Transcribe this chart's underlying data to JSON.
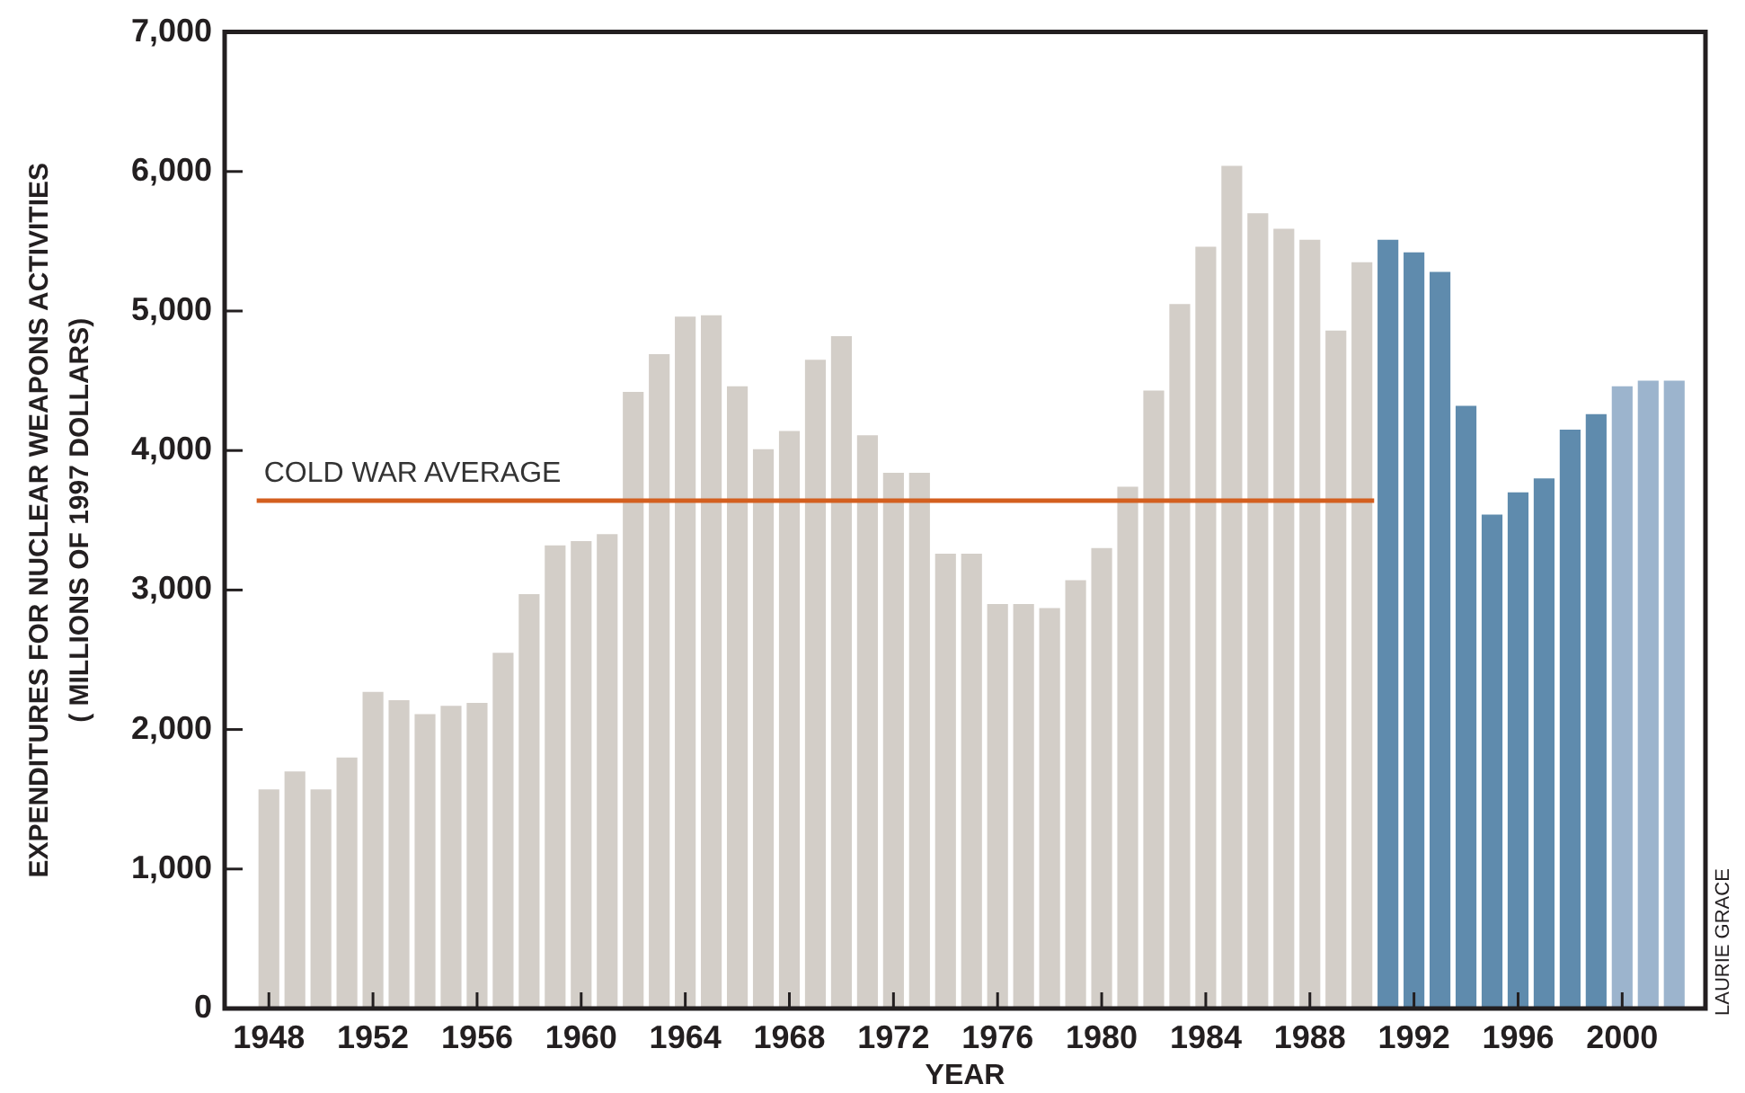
{
  "chart_data": {
    "type": "bar",
    "xlabel": "YEAR",
    "ylabel": "EXPENDITURES FOR NUCLEAR WEAPONS ACTIVITIES\n( MILLIONS OF 1997 DOLLARS)",
    "x": [
      1948,
      1949,
      1950,
      1951,
      1952,
      1953,
      1954,
      1955,
      1956,
      1957,
      1958,
      1959,
      1960,
      1961,
      1962,
      1963,
      1964,
      1965,
      1966,
      1967,
      1968,
      1969,
      1970,
      1971,
      1972,
      1973,
      1974,
      1975,
      1976,
      1977,
      1978,
      1979,
      1980,
      1981,
      1982,
      1983,
      1984,
      1985,
      1986,
      1987,
      1988,
      1989,
      1990,
      1991,
      1992,
      1993,
      1994,
      1995,
      1996,
      1997,
      1998,
      1999,
      2000,
      2001,
      2002
    ],
    "values": [
      1570,
      1700,
      1570,
      1800,
      2270,
      2210,
      2110,
      2170,
      2190,
      2550,
      2970,
      3320,
      3350,
      3400,
      4420,
      4690,
      4960,
      4970,
      4460,
      4010,
      4140,
      4650,
      4820,
      4110,
      3840,
      3840,
      3260,
      3260,
      2900,
      2900,
      2870,
      3070,
      3300,
      3740,
      4430,
      5050,
      5460,
      6040,
      5700,
      5590,
      5510,
      4860,
      5350,
      5510,
      5420,
      5280,
      4320,
      3540,
      3700,
      3800,
      4150,
      4260,
      4460,
      4500,
      4500
    ],
    "colors": [
      "#d3cec8",
      "#d3cec8",
      "#d3cec8",
      "#d3cec8",
      "#d3cec8",
      "#d3cec8",
      "#d3cec8",
      "#d3cec8",
      "#d3cec8",
      "#d3cec8",
      "#d3cec8",
      "#d3cec8",
      "#d3cec8",
      "#d3cec8",
      "#d3cec8",
      "#d3cec8",
      "#d3cec8",
      "#d3cec8",
      "#d3cec8",
      "#d3cec8",
      "#d3cec8",
      "#d3cec8",
      "#d3cec8",
      "#d3cec8",
      "#d3cec8",
      "#d3cec8",
      "#d3cec8",
      "#d3cec8",
      "#d3cec8",
      "#d3cec8",
      "#d3cec8",
      "#d3cec8",
      "#d3cec8",
      "#d3cec8",
      "#d3cec8",
      "#d3cec8",
      "#d3cec8",
      "#d3cec8",
      "#d3cec8",
      "#d3cec8",
      "#d3cec8",
      "#d3cec8",
      "#d3cec8",
      "#5f8bad",
      "#5f8bad",
      "#5f8bad",
      "#5f8bad",
      "#5f8bad",
      "#5f8bad",
      "#5f8bad",
      "#5f8bad",
      "#5f8bad",
      "#9cb4cd",
      "#9cb4cd",
      "#9cb4cd"
    ],
    "xlim": [
      1946.3,
      2003.2
    ],
    "xticks": [
      1948,
      1952,
      1956,
      1960,
      1964,
      1968,
      1972,
      1976,
      1980,
      1984,
      1988,
      1992,
      1996,
      2000
    ],
    "ylim": [
      0,
      7000
    ],
    "yticks": [
      0,
      {
        "value": 1000,
        "label": "1,000"
      },
      {
        "value": 2000,
        "label": "2,000"
      },
      {
        "value": 3000,
        "label": "3,000"
      },
      {
        "value": 4000,
        "label": "4,000"
      },
      {
        "value": 5000,
        "label": "5,000"
      },
      {
        "value": 6000,
        "label": "6,000"
      },
      {
        "value": 7000,
        "label": "7,000"
      }
    ],
    "ref_lines": [
      {
        "axis": "y",
        "value": 3640,
        "label": "COLD WAR AVERAGE",
        "color": "#d35f1f"
      }
    ],
    "annotations": [
      "LAURIE GRACE"
    ]
  }
}
